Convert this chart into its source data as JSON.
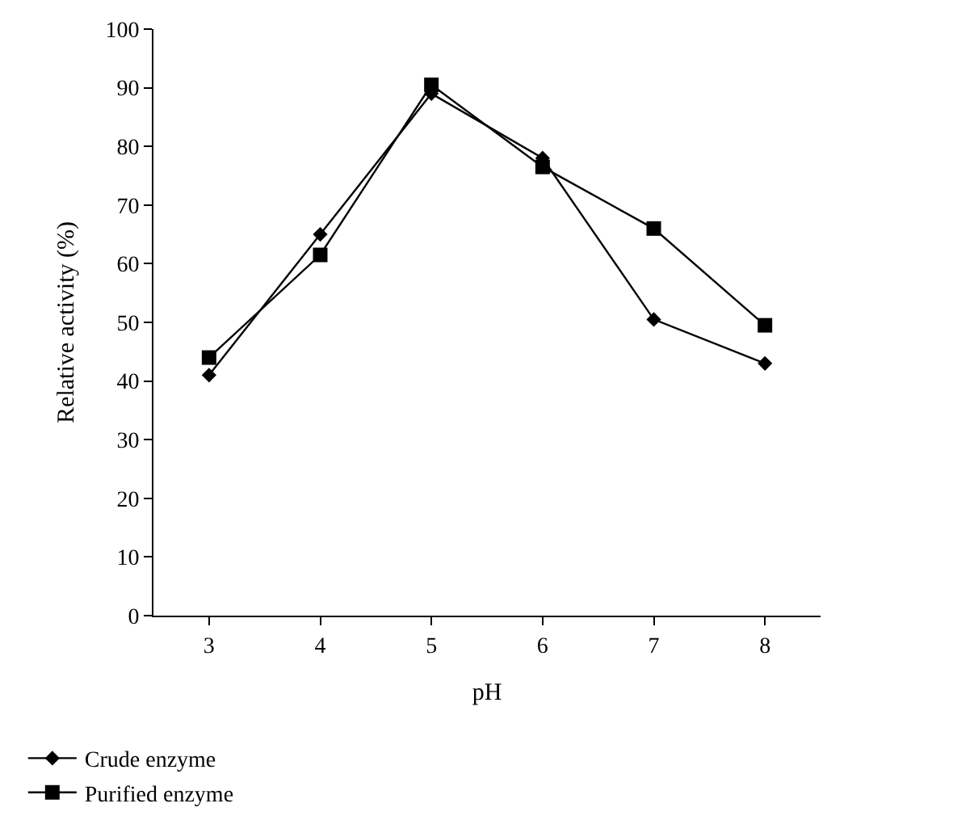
{
  "chart_data": {
    "type": "line",
    "xlabel": "pH",
    "ylabel": "Relative activity (%)",
    "x": [
      3,
      4,
      5,
      6,
      7,
      8
    ],
    "series": [
      {
        "name": "Crude enzyme",
        "color": "#000000",
        "marker": "diamond",
        "values": [
          41,
          65,
          89,
          78,
          50.5,
          43
        ]
      },
      {
        "name": "Purified enzyme",
        "color": "#000000",
        "marker": "square",
        "values": [
          44,
          61.5,
          90.5,
          76.5,
          66,
          49.5
        ]
      }
    ],
    "xlim": [
      2.5,
      8.5
    ],
    "xticks": [
      3,
      4,
      5,
      6,
      7,
      8
    ],
    "ylim": [
      0,
      100
    ],
    "yticks": [
      0,
      10,
      20,
      30,
      40,
      50,
      60,
      70,
      80,
      90,
      100
    ],
    "legend": "bottom left",
    "line_style": "solid"
  }
}
